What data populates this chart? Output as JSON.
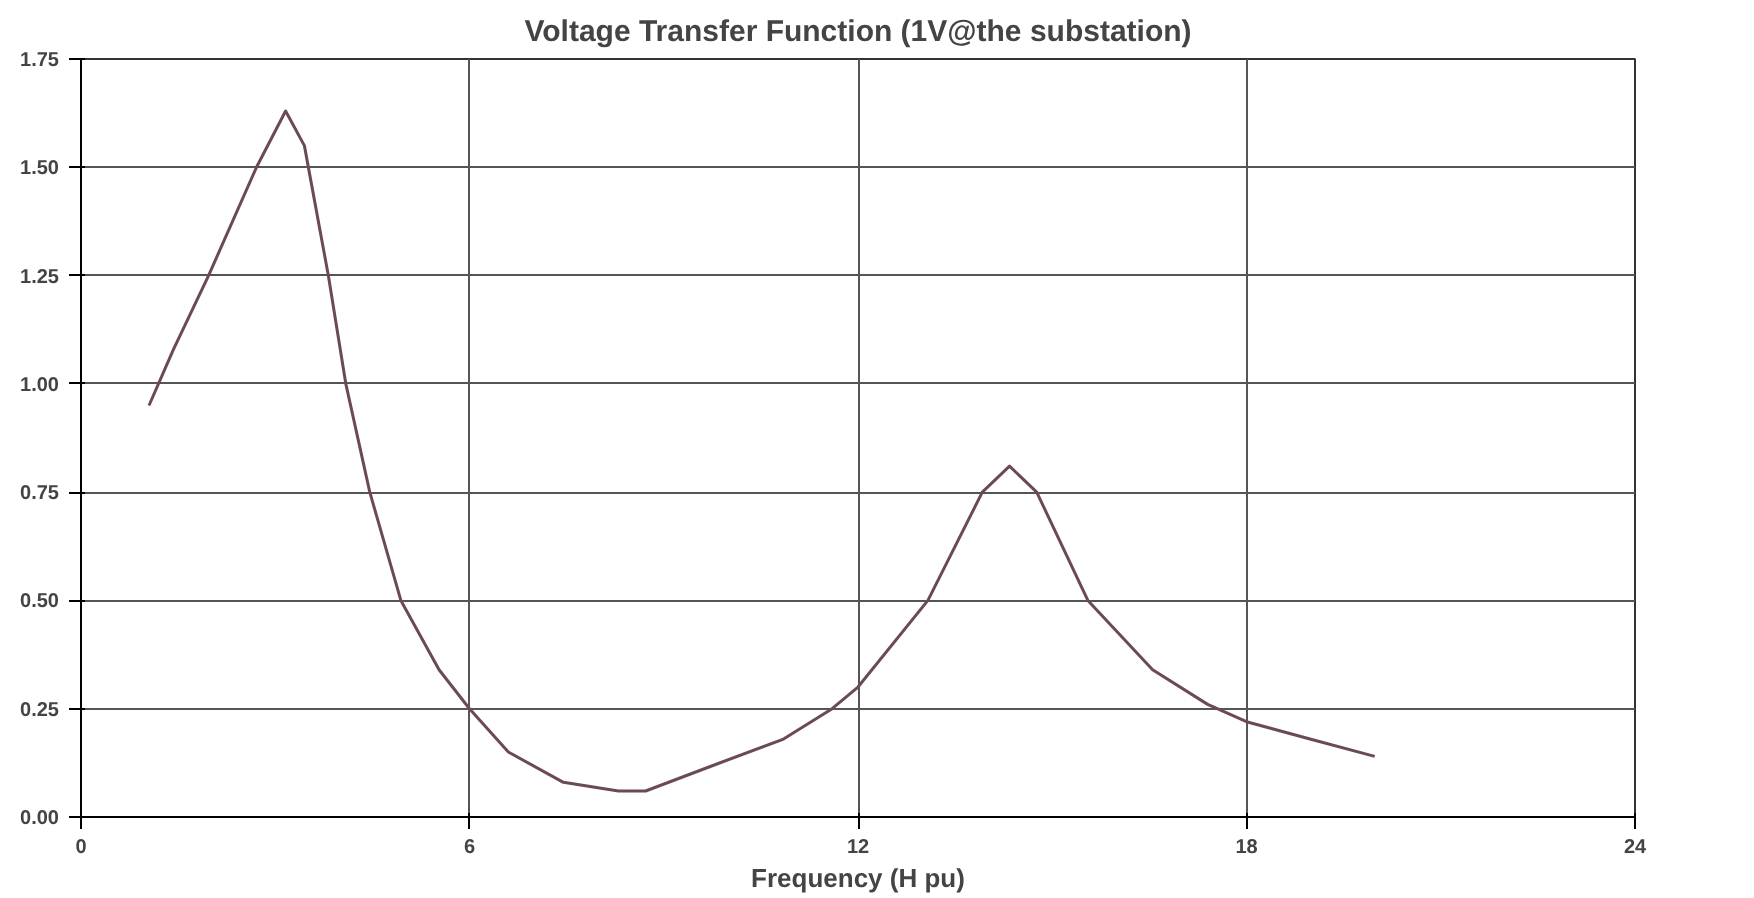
{
  "chart_data": {
    "type": "line",
    "title": "Voltage Transfer Function (1V@the substation)",
    "xlabel": "Frequency (H pu)",
    "x": [
      1.05,
      1.43,
      1.97,
      2.71,
      3.16,
      3.45,
      3.82,
      4.09,
      4.46,
      4.94,
      5.53,
      6.0,
      6.6,
      7.45,
      8.3,
      8.72,
      9.78,
      10.85,
      11.6,
      12.0,
      13.08,
      13.92,
      14.34,
      14.76,
      15.55,
      16.55,
      17.4,
      18.0,
      18.98,
      19.98
    ],
    "series": [
      {
        "color": "#6b4a55",
        "values": [
          0.95,
          1.08,
          1.25,
          1.5,
          1.63,
          1.55,
          1.25,
          1.0,
          0.75,
          0.5,
          0.34,
          0.25,
          0.15,
          0.08,
          0.06,
          0.06,
          0.12,
          0.18,
          0.25,
          0.3,
          0.5,
          0.75,
          0.81,
          0.75,
          0.5,
          0.34,
          0.26,
          0.22,
          0.18,
          0.14
        ]
      }
    ],
    "xlim": [
      0,
      24
    ],
    "ylim": [
      0,
      1.75
    ],
    "xticks": [
      0,
      6,
      12,
      18,
      24
    ],
    "yticks": [
      {
        "value": 0,
        "label": "0.00"
      },
      {
        "value": 0.25,
        "label": "0.25"
      },
      {
        "value": 0.5,
        "label": "0.50"
      },
      {
        "value": 0.75,
        "label": "0.75"
      },
      {
        "value": 1.0,
        "label": "1.00"
      },
      {
        "value": 1.25,
        "label": "1.25"
      },
      {
        "value": 1.5,
        "label": "1.50"
      },
      {
        "value": 1.75,
        "label": "1.75"
      }
    ],
    "grid": true,
    "marker": "none",
    "line_style": "solid"
  }
}
